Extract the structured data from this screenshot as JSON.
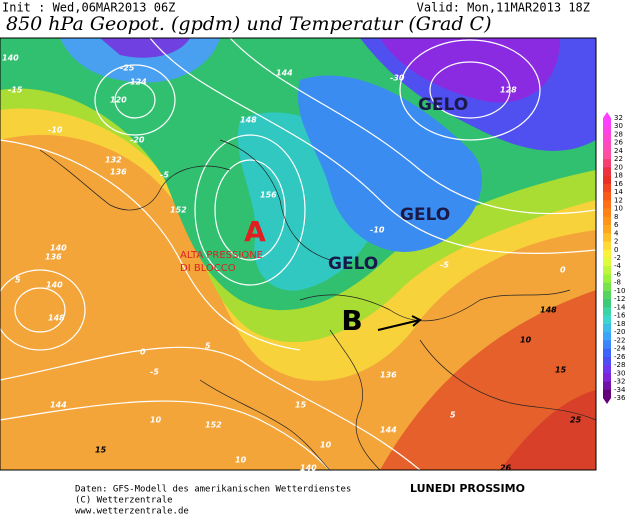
{
  "header": {
    "init": "Init : Wed,06MAR2013 06Z",
    "valid": "Valid: Mon,11MAR2013 18Z",
    "title": "850 hPa Geopot. (gpdm) und Temperatur (Grad C)"
  },
  "annotations": {
    "high": "A",
    "high_note_1": "ALTA PRESSIONE",
    "high_note_2": "DI BLOCCO",
    "low": "B",
    "frost": [
      "GELO",
      "GELO",
      "GELO"
    ]
  },
  "contour_labels": [
    "140",
    "-15",
    "-25",
    "124",
    "120",
    "-10",
    "132",
    "136",
    "-5",
    "144",
    "148",
    "156",
    "152",
    "-20",
    "-30",
    "128",
    "-10",
    "-5",
    "0",
    "140",
    "136",
    "140",
    "148",
    "144",
    "0",
    "-5",
    "5",
    "10",
    "152",
    "15",
    "10",
    "5",
    "136",
    "144",
    "148",
    "10",
    "15",
    "25",
    "26",
    "15",
    "10",
    "140",
    "5"
  ],
  "legend": {
    "ticks": [
      32,
      30,
      28,
      26,
      24,
      22,
      20,
      18,
      16,
      14,
      12,
      10,
      8,
      6,
      4,
      2,
      0,
      -2,
      -4,
      -6,
      -8,
      -10,
      -12,
      -14,
      -16,
      -18,
      -20,
      -22,
      -24,
      -26,
      -28,
      -30,
      -32,
      -34,
      -36
    ]
  },
  "footer": {
    "source": "Daten: GFS-Modell des amerikanischen Wetterdienstes",
    "caption": "LUNEDI PROSSIMO",
    "copyright": "(C) Wetterzentrale",
    "url": "www.wetterzentrale.de"
  }
}
